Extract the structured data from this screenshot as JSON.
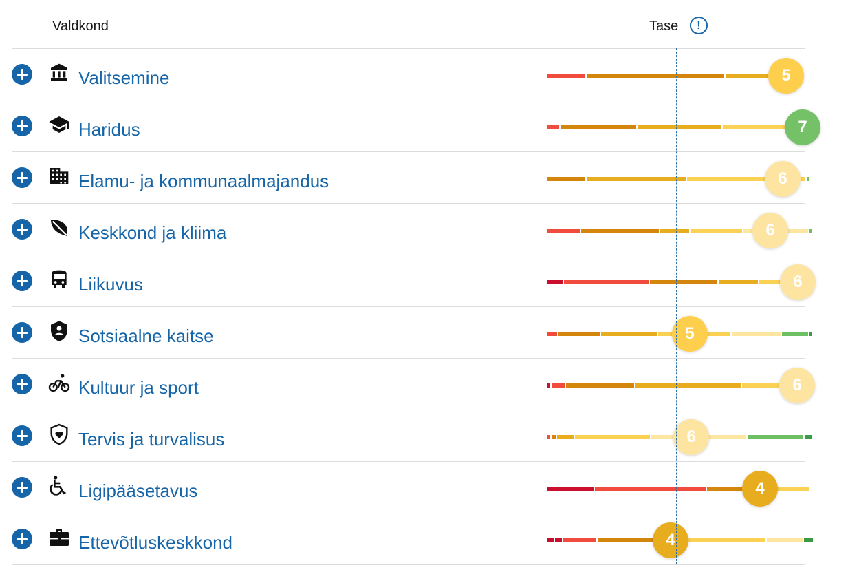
{
  "header": {
    "col_domain": "Valdkond",
    "col_level": "Tase",
    "info_icon": "info-icon"
  },
  "palette": {
    "dark_red": "#c8102e",
    "red": "#f04b3c",
    "dark_orange": "#d4860c",
    "orange": "#e8ad1f",
    "yellow": "#fad153",
    "light_yellow": "#fde6a0",
    "green": "#6cbf63",
    "dark_green": "#3a9a46"
  },
  "rows": [
    {
      "label": "Valitsemine",
      "icon": "government-building-icon",
      "score": "5",
      "score_color": "#fdcf4d",
      "segments": [
        {
          "w": 55,
          "c": "#f04b3c"
        },
        {
          "w": 200,
          "c": "#d4860c"
        },
        {
          "w": 80,
          "c": "#e8ad1f"
        }
      ]
    },
    {
      "label": "Haridus",
      "icon": "graduation-cap-icon",
      "score": "7",
      "score_color": "#74c167",
      "segments": [
        {
          "w": 17,
          "c": "#f04b3c"
        },
        {
          "w": 110,
          "c": "#d4860c"
        },
        {
          "w": 122,
          "c": "#e8ad1f"
        },
        {
          "w": 110,
          "c": "#fad153"
        }
      ]
    },
    {
      "label": "Elamu- ja kommunaalmajandus",
      "icon": "apartment-building-icon",
      "score": "6",
      "score_color": "#fde4a0",
      "segments": [
        {
          "w": 55,
          "c": "#d4860c"
        },
        {
          "w": 144,
          "c": "#e8ad1f"
        },
        {
          "w": 172,
          "c": "#fad153"
        },
        {
          "w": 3,
          "c": "#6cbf63"
        }
      ]
    },
    {
      "label": "Keskkond ja kliima",
      "icon": "leaf-icon",
      "score": "6",
      "score_color": "#fde4a0",
      "segments": [
        {
          "w": 47,
          "c": "#f04b3c"
        },
        {
          "w": 113,
          "c": "#d4860c"
        },
        {
          "w": 42,
          "c": "#e8ad1f"
        },
        {
          "w": 75,
          "c": "#fad153"
        },
        {
          "w": 94,
          "c": "#fde6a0"
        },
        {
          "w": 3,
          "c": "#6cbf63"
        }
      ]
    },
    {
      "label": "Liikuvus",
      "icon": "bus-icon",
      "score": "6",
      "score_color": "#fde4a0",
      "segments": [
        {
          "w": 22,
          "c": "#c8102e"
        },
        {
          "w": 123,
          "c": "#f04b3c"
        },
        {
          "w": 98,
          "c": "#d4860c"
        },
        {
          "w": 57,
          "c": "#e8ad1f"
        },
        {
          "w": 74,
          "c": "#fad153"
        }
      ]
    },
    {
      "label": "Sotsiaalne kaitse",
      "icon": "shield-person-icon",
      "score": "5",
      "score_color": "#fdcf4d",
      "segments": [
        {
          "w": 14,
          "c": "#f04b3c"
        },
        {
          "w": 60,
          "c": "#d4860c"
        },
        {
          "w": 81,
          "c": "#e8ad1f"
        },
        {
          "w": 105,
          "c": "#fad153"
        },
        {
          "w": 71,
          "c": "#fde6a0"
        },
        {
          "w": 38,
          "c": "#6cbf63"
        },
        {
          "w": 3,
          "c": "#3a9a46"
        }
      ]
    },
    {
      "label": "Kultuur ja sport",
      "icon": "bicycle-icon",
      "score": "6",
      "score_color": "#fde4a0",
      "segments": [
        {
          "w": 4,
          "c": "#c8102e"
        },
        {
          "w": 19,
          "c": "#f04b3c"
        },
        {
          "w": 99,
          "c": "#d4860c"
        },
        {
          "w": 153,
          "c": "#e8ad1f"
        },
        {
          "w": 99,
          "c": "#fad153"
        }
      ]
    },
    {
      "label": "Tervis ja turvalisus",
      "icon": "shield-heart-icon",
      "score": "6",
      "score_color": "#fde4a0",
      "segments": [
        {
          "w": 4,
          "c": "#f04b3c"
        },
        {
          "w": 6,
          "c": "#d4860c"
        },
        {
          "w": 24,
          "c": "#e8ad1f"
        },
        {
          "w": 109,
          "c": "#fad153"
        },
        {
          "w": 138,
          "c": "#fde6a0"
        },
        {
          "w": 81,
          "c": "#6cbf63"
        },
        {
          "w": 10,
          "c": "#3a9a46"
        },
        {
          "w": 2,
          "c": "#ffffff"
        }
      ]
    },
    {
      "label": "Ligipääsetavus",
      "icon": "wheelchair-icon",
      "score": "4",
      "score_color": "#e8ad1f",
      "segments": [
        {
          "w": 67,
          "c": "#c8102e"
        },
        {
          "w": 161,
          "c": "#f04b3c"
        },
        {
          "w": 80,
          "c": "#d4860c"
        },
        {
          "w": 66,
          "c": "#fad153"
        }
      ]
    },
    {
      "label": "Ettevõtluskeskkond",
      "icon": "briefcase-icon",
      "score": "4",
      "score_color": "#e8ad1f",
      "segments": [
        {
          "w": 9,
          "c": "#c8102e"
        },
        {
          "w": 10,
          "c": "#c8102e"
        },
        {
          "w": 48,
          "c": "#f04b3c"
        },
        {
          "w": 96,
          "c": "#d4860c"
        },
        {
          "w": 146,
          "c": "#fad153"
        },
        {
          "w": 52,
          "c": "#fde6a0"
        },
        {
          "w": 13,
          "c": "#3a9a46"
        }
      ]
    }
  ]
}
